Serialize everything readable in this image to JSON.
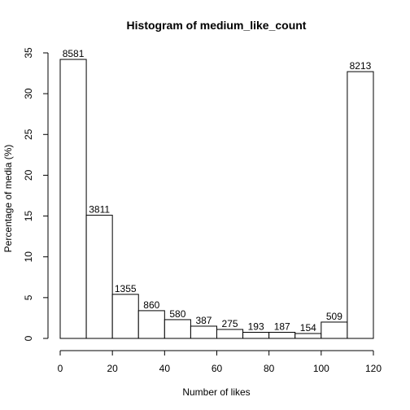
{
  "chart_data": {
    "type": "bar",
    "title": "Histogram of medium_like_count",
    "xlabel": "Number of likes",
    "ylabel": "Percentage of media (%)",
    "xlim": [
      0,
      120
    ],
    "ylim": [
      0,
      35
    ],
    "x_ticks": [
      0,
      20,
      40,
      60,
      80,
      100,
      120
    ],
    "y_ticks": [
      0,
      5,
      10,
      15,
      20,
      25,
      30,
      35
    ],
    "bin_width": 10,
    "bins": [
      {
        "start": 0,
        "end": 10,
        "percent": 34.2,
        "count": "8581"
      },
      {
        "start": 10,
        "end": 20,
        "percent": 15.1,
        "count": "3811"
      },
      {
        "start": 20,
        "end": 30,
        "percent": 5.4,
        "count": "1355"
      },
      {
        "start": 30,
        "end": 40,
        "percent": 3.4,
        "count": "860"
      },
      {
        "start": 40,
        "end": 50,
        "percent": 2.3,
        "count": "580"
      },
      {
        "start": 50,
        "end": 60,
        "percent": 1.5,
        "count": "387"
      },
      {
        "start": 60,
        "end": 70,
        "percent": 1.1,
        "count": "275"
      },
      {
        "start": 70,
        "end": 80,
        "percent": 0.75,
        "count": "193"
      },
      {
        "start": 80,
        "end": 90,
        "percent": 0.75,
        "count": "187"
      },
      {
        "start": 90,
        "end": 100,
        "percent": 0.6,
        "count": "154"
      },
      {
        "start": 100,
        "end": 110,
        "percent": 2.0,
        "count": "509"
      },
      {
        "start": 110,
        "end": 120,
        "percent": 32.7,
        "count": "8213"
      }
    ],
    "grid": false,
    "bar_fill": "#ffffff",
    "bar_stroke": "#000000"
  }
}
